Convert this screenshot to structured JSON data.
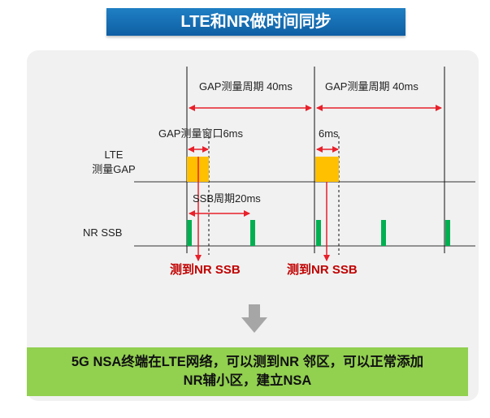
{
  "title": "LTE和NR做时间同步",
  "labels": {
    "gap_period_1": "GAP测量周期 40ms",
    "gap_period_2": "GAP测量周期 40ms",
    "gap_window": "GAP测量窗口6ms",
    "window_6ms": "6ms",
    "lte_line1": "LTE",
    "lte_line2": "测量GAP",
    "ssb_period": "SSB周期20ms",
    "nr_ssb": "NR SSB",
    "detected_1": "测到NR SSB",
    "detected_2": "测到NR SSB"
  },
  "conclusion": {
    "line1": "5G NSA终端在LTE网络，可以测到NR 邻区，可以正常添加",
    "line2": "NR辅小区，建立NSA"
  },
  "colors": {
    "title_bg": "#1573ba",
    "gap_block": "#ffc000",
    "ssb_pulse": "#00b050",
    "arrow_red": "#e8202a",
    "text_red": "#c00000",
    "conclusion_bg": "#92d050",
    "down_arrow": "#a6a6a6"
  }
}
